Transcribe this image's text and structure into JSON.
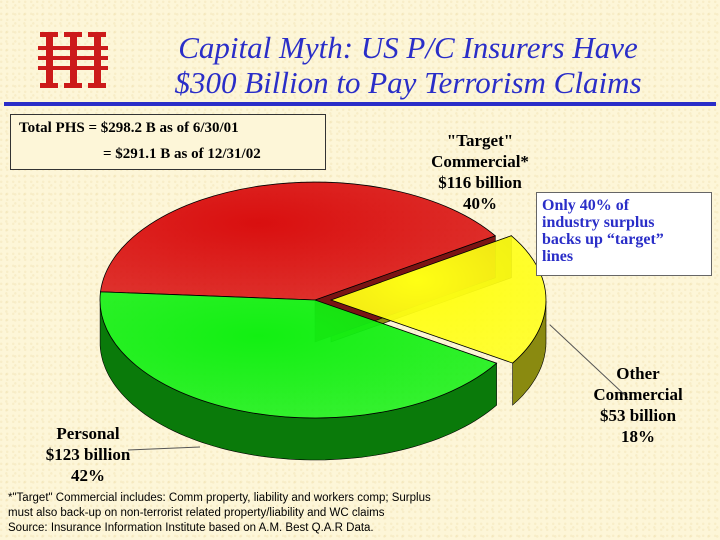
{
  "title": {
    "line1": "Capital Myth: US P/C Insurers Have",
    "line2": "$300 Billion to Pay Terrorism Claims"
  },
  "brand": {
    "logo_icon": "iii-logo-icon",
    "logo_color": "#cc1a1a"
  },
  "phs_box": {
    "line1": "Total PHS = $298.2 B as of 6/30/01",
    "line2": "= $291.1 B as of 12/31/02"
  },
  "note": {
    "line1": "Only 40% of",
    "line2": "industry surplus",
    "line3": "backs up “target”",
    "line4": "lines"
  },
  "chart_data": {
    "type": "pie",
    "title": "",
    "units": "billion",
    "slices": [
      {
        "label": "\"Target\" Commercial*",
        "value": 116,
        "value_label": "$116 billion",
        "percent": 40,
        "percent_label": "40%",
        "color": "#d90f0f",
        "side_color": "#7a1414",
        "exploded": false
      },
      {
        "label": "Other Commercial",
        "value": 53,
        "value_label": "$53 billion",
        "percent": 18,
        "percent_label": "18%",
        "color": "#ffff14",
        "side_color": "#8a8a10",
        "exploded": true
      },
      {
        "label": "Personal",
        "value": 123,
        "value_label": "$123 billion",
        "percent": 42,
        "percent_label": "42%",
        "color": "#12f012",
        "side_color": "#0a7a0a",
        "exploded": false
      }
    ]
  },
  "labels": {
    "target": {
      "line1": "\"Target\"",
      "line2": "Commercial*",
      "line3": "$116 billion",
      "line4": "40%"
    },
    "other": {
      "line1": "Other",
      "line2": "Commercial",
      "line3": "$53 billion",
      "line4": "18%"
    },
    "personal": {
      "line1": "Personal",
      "line2": "$123 billion",
      "line3": "42%"
    }
  },
  "footnote": {
    "line1": "*\"Target\" Commercial includes: Comm property, liability and workers comp; Surplus",
    "line2": "must also back-up on non-terrorist related property/liability and WC claims",
    "line3": "Source: Insurance Information Institute based on A.M. Best Q.A.R Data."
  }
}
